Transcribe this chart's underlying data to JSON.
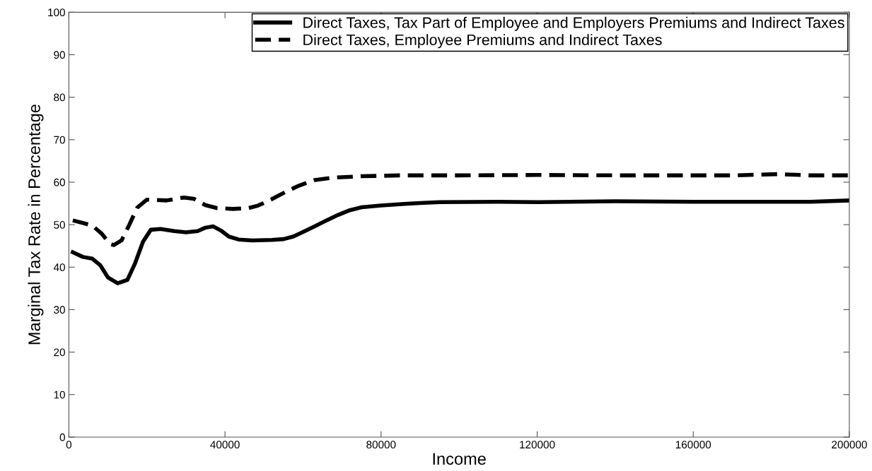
{
  "chart_data": {
    "type": "line",
    "xlabel": "Income",
    "ylabel": "Marginal Tax Rate in Percentage",
    "xlim": [
      0,
      200000
    ],
    "xticks": [
      0,
      40000,
      80000,
      120000,
      160000,
      200000
    ],
    "ylim": [
      0,
      100
    ],
    "yticks": [
      0,
      10,
      20,
      30,
      40,
      50,
      60,
      70,
      80,
      90,
      100
    ],
    "grid": false,
    "legend": "top right",
    "marker": "none",
    "series": [
      {
        "name": "Direct Taxes, Tax Part of Employee and Employers Premiums and Indirect Taxes",
        "color": "#000000",
        "line_style": "solid",
        "x": [
          1000,
          3600,
          6000,
          8000,
          10000,
          12500,
          15000,
          17000,
          19000,
          21000,
          23500,
          27000,
          30000,
          33000,
          35000,
          37000,
          39000,
          41000,
          43500,
          47000,
          52000,
          55000,
          57500,
          60000,
          63000,
          66000,
          69000,
          72000,
          75000,
          80000,
          86000,
          90000,
          95000,
          110000,
          120000,
          140000,
          160000,
          190000,
          200000
        ],
        "values": [
          43.5,
          42.4,
          42.0,
          40.5,
          37.6,
          36.2,
          37.0,
          41.0,
          46.0,
          48.8,
          49.0,
          48.5,
          48.2,
          48.5,
          49.3,
          49.6,
          48.6,
          47.2,
          46.5,
          46.3,
          46.4,
          46.6,
          47.2,
          48.3,
          49.6,
          51.0,
          52.3,
          53.4,
          54.1,
          54.5,
          54.9,
          55.1,
          55.3,
          55.4,
          55.3,
          55.5,
          55.4,
          55.4,
          55.7
        ]
      },
      {
        "name": "Direct Taxes, Employee Premiums and Indirect Taxes",
        "color": "#000000",
        "line_style": "dashed",
        "x": [
          1000,
          3600,
          6000,
          8500,
          10500,
          11500,
          13500,
          15500,
          17500,
          20000,
          25000,
          29500,
          32000,
          35000,
          38000,
          42000,
          46000,
          48500,
          52000,
          55500,
          59000,
          63000,
          68000,
          75000,
          85000,
          100000,
          120000,
          140000,
          170000,
          182000,
          190000,
          200000
        ],
        "values": [
          51.0,
          50.4,
          49.8,
          47.8,
          45.5,
          45.2,
          46.3,
          50.0,
          54.0,
          55.9,
          55.7,
          56.4,
          56.1,
          54.6,
          53.9,
          53.7,
          53.9,
          54.5,
          56.0,
          57.7,
          59.2,
          60.5,
          61.1,
          61.4,
          61.6,
          61.6,
          61.7,
          61.6,
          61.6,
          61.9,
          61.6,
          61.6
        ]
      }
    ]
  }
}
